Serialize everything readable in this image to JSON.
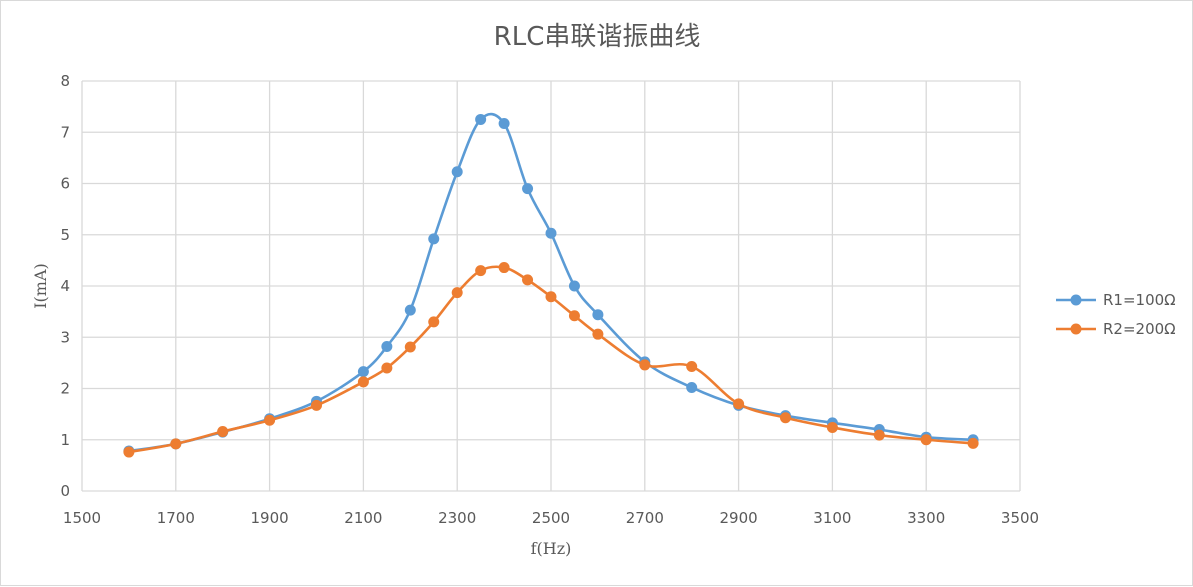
{
  "chart_data": {
    "type": "line",
    "title": "RLC串联谐振曲线",
    "xlabel": "f(Hz)",
    "ylabel": "I(mA)",
    "xlim": [
      1500,
      3500
    ],
    "ylim": [
      0,
      8
    ],
    "xticks": [
      1500,
      1700,
      1900,
      2100,
      2300,
      2500,
      2700,
      2900,
      3100,
      3300,
      3500
    ],
    "yticks": [
      0,
      1,
      2,
      3,
      4,
      5,
      6,
      7,
      8
    ],
    "grid": true,
    "smooth": true,
    "legend_position": "right",
    "series": [
      {
        "name": "R1=100Ω",
        "color": "#5b9bd5",
        "x": [
          1600,
          1700,
          1800,
          1900,
          2000,
          2100,
          2150,
          2200,
          2250,
          2300,
          2350,
          2400,
          2450,
          2500,
          2550,
          2600,
          2700,
          2800,
          2900,
          3000,
          3100,
          3200,
          3300,
          3400
        ],
        "y": [
          0.78,
          0.92,
          1.15,
          1.41,
          1.75,
          2.33,
          2.82,
          3.53,
          4.92,
          6.23,
          7.25,
          7.17,
          5.9,
          5.03,
          4.0,
          3.44,
          2.52,
          2.02,
          1.67,
          1.47,
          1.33,
          1.2,
          1.05,
          1.0
        ]
      },
      {
        "name": "R2=200Ω",
        "color": "#ed7d31",
        "x": [
          1600,
          1700,
          1800,
          1900,
          2000,
          2100,
          2150,
          2200,
          2250,
          2300,
          2350,
          2400,
          2450,
          2500,
          2550,
          2600,
          2700,
          2800,
          2900,
          3000,
          3100,
          3200,
          3300,
          3400
        ],
        "y": [
          0.76,
          0.92,
          1.16,
          1.38,
          1.67,
          2.13,
          2.4,
          2.81,
          3.3,
          3.87,
          4.3,
          4.36,
          4.12,
          3.79,
          3.42,
          3.06,
          2.46,
          2.43,
          1.7,
          1.43,
          1.24,
          1.09,
          1.0,
          0.93
        ]
      }
    ]
  }
}
